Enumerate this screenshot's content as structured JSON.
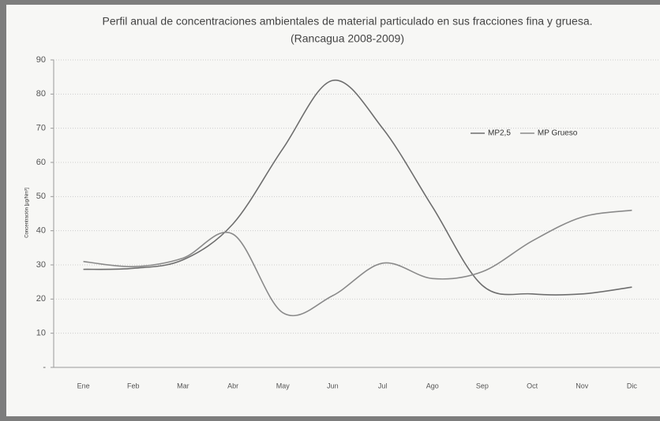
{
  "chart_data": {
    "type": "line",
    "title": "Perfil anual de concentraciones ambientales de material particulado en sus fracciones fina y gruesa.",
    "subtitle": "(Rancagua 2008-2009)",
    "y_label": "Concentración [µg/Nm³]",
    "categories": [
      "Ene",
      "Feb",
      "Mar",
      "Abr",
      "May",
      "Jun",
      "Jul",
      "Ago",
      "Sep",
      "Oct",
      "Nov",
      "Dic"
    ],
    "series": [
      {
        "name": "MP2,5",
        "color": "#6e6e6e",
        "values": [
          28.7,
          29,
          31.5,
          42,
          64,
          84,
          70,
          47,
          24,
          21.5,
          21.5,
          23.5
        ]
      },
      {
        "name": "MP Grueso",
        "color": "#8a8a8a",
        "values": [
          31,
          29.5,
          32,
          39,
          16,
          21,
          30.5,
          26,
          28,
          37,
          44,
          46
        ]
      }
    ],
    "ylim": [
      0,
      90
    ],
    "yticks": [
      {
        "value": 0,
        "label": "-"
      },
      10,
      20,
      30,
      40,
      50,
      60,
      70,
      80,
      90
    ],
    "grid": true,
    "smooth": true,
    "legend": "upper right"
  }
}
